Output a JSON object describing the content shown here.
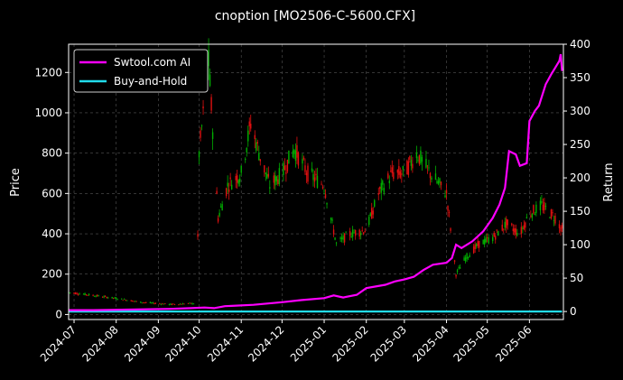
{
  "chart_data": {
    "type": "candlestick-with-line",
    "title": "cnoption [MO2506-C-5600.CFX]",
    "xlabel": "",
    "ylabel_left": "Price",
    "ylabel_right": "Return",
    "x_range": [
      "2024-06-27",
      "2025-06-26"
    ],
    "ylim_left": [
      -25,
      1340
    ],
    "ylim_right": [
      -12,
      400
    ],
    "grid": true,
    "legend_placement": "top-left",
    "x_ticks": [
      {
        "date": "2024-07-01",
        "label": "2024-07"
      },
      {
        "date": "2024-08-01",
        "label": "2024-08"
      },
      {
        "date": "2024-09-01",
        "label": "2024-09"
      },
      {
        "date": "2024-10-01",
        "label": "2024-10"
      },
      {
        "date": "2024-11-01",
        "label": "2024-11"
      },
      {
        "date": "2024-12-01",
        "label": "2024-12"
      },
      {
        "date": "2025-01-01",
        "label": "2025-01"
      },
      {
        "date": "2025-02-01",
        "label": "2025-02"
      },
      {
        "date": "2025-03-01",
        "label": "2025-03"
      },
      {
        "date": "2025-04-01",
        "label": "2025-04"
      },
      {
        "date": "2025-05-01",
        "label": "2025-05"
      },
      {
        "date": "2025-06-01",
        "label": "2025-06"
      }
    ],
    "y_ticks_left": [
      0,
      200,
      400,
      600,
      800,
      1000,
      1200
    ],
    "y_ticks_right": [
      0,
      50,
      100,
      150,
      200,
      250,
      300,
      350,
      400
    ],
    "colors": {
      "up": "#00b000",
      "down": "#e01010",
      "strategy": "#ff00ff",
      "buy_hold": "#22dcec",
      "grid": "#555555"
    },
    "series": [
      {
        "name": "Swtool.com AI",
        "axis": "right",
        "points": [
          [
            "2024-06-27",
            2
          ],
          [
            "2024-07-15",
            2
          ],
          [
            "2024-08-15",
            3
          ],
          [
            "2024-09-10",
            4
          ],
          [
            "2024-09-25",
            5
          ],
          [
            "2024-10-05",
            6
          ],
          [
            "2024-10-12",
            5
          ],
          [
            "2024-10-20",
            8
          ],
          [
            "2024-11-10",
            10
          ],
          [
            "2024-12-01",
            14
          ],
          [
            "2024-12-15",
            17
          ],
          [
            "2025-01-01",
            20
          ],
          [
            "2025-01-08",
            24
          ],
          [
            "2025-01-15",
            21
          ],
          [
            "2025-01-25",
            25
          ],
          [
            "2025-02-01",
            35
          ],
          [
            "2025-02-15",
            40
          ],
          [
            "2025-02-22",
            45
          ],
          [
            "2025-03-01",
            48
          ],
          [
            "2025-03-08",
            52
          ],
          [
            "2025-03-15",
            62
          ],
          [
            "2025-03-22",
            70
          ],
          [
            "2025-04-01",
            73
          ],
          [
            "2025-04-05",
            80
          ],
          [
            "2025-04-08",
            100
          ],
          [
            "2025-04-12",
            95
          ],
          [
            "2025-04-20",
            105
          ],
          [
            "2025-04-28",
            120
          ],
          [
            "2025-05-05",
            140
          ],
          [
            "2025-05-10",
            160
          ],
          [
            "2025-05-14",
            185
          ],
          [
            "2025-05-17",
            240
          ],
          [
            "2025-05-22",
            235
          ],
          [
            "2025-05-25",
            218
          ],
          [
            "2025-05-30",
            222
          ],
          [
            "2025-06-01",
            285
          ],
          [
            "2025-06-05",
            300
          ],
          [
            "2025-06-08",
            308
          ],
          [
            "2025-06-13",
            340
          ],
          [
            "2025-06-17",
            355
          ],
          [
            "2025-06-20",
            365
          ],
          [
            "2025-06-23",
            375
          ],
          [
            "2025-06-24",
            385
          ],
          [
            "2025-06-25",
            360
          ]
        ]
      },
      {
        "name": "Buy-and-Hold",
        "axis": "right",
        "points": [
          [
            "2024-06-27",
            0
          ],
          [
            "2025-06-25",
            0
          ]
        ]
      }
    ],
    "price_path": [
      [
        "2024-06-27",
        110
      ],
      [
        "2024-07-15",
        95
      ],
      [
        "2024-08-01",
        80
      ],
      [
        "2024-08-20",
        60
      ],
      [
        "2024-09-10",
        50
      ],
      [
        "2024-09-27",
        55
      ],
      [
        "2024-09-30",
        380
      ],
      [
        "2024-10-01",
        800
      ],
      [
        "2024-10-08",
        1250
      ],
      [
        "2024-10-15",
        480
      ],
      [
        "2024-10-22",
        640
      ],
      [
        "2024-11-01",
        700
      ],
      [
        "2024-11-08",
        950
      ],
      [
        "2024-11-15",
        780
      ],
      [
        "2024-11-22",
        640
      ],
      [
        "2024-12-01",
        700
      ],
      [
        "2024-12-10",
        820
      ],
      [
        "2024-12-20",
        700
      ],
      [
        "2025-01-01",
        640
      ],
      [
        "2025-01-10",
        350
      ],
      [
        "2025-01-20",
        400
      ],
      [
        "2025-02-01",
        420
      ],
      [
        "2025-02-10",
        600
      ],
      [
        "2025-02-20",
        700
      ],
      [
        "2025-03-01",
        700
      ],
      [
        "2025-03-10",
        800
      ],
      [
        "2025-03-20",
        700
      ],
      [
        "2025-04-01",
        600
      ],
      [
        "2025-04-08",
        200
      ],
      [
        "2025-04-15",
        280
      ],
      [
        "2025-04-25",
        350
      ],
      [
        "2025-05-05",
        380
      ],
      [
        "2025-05-15",
        450
      ],
      [
        "2025-05-25",
        400
      ],
      [
        "2025-06-01",
        500
      ],
      [
        "2025-06-10",
        540
      ],
      [
        "2025-06-20",
        480
      ],
      [
        "2025-06-25",
        420
      ]
    ]
  }
}
